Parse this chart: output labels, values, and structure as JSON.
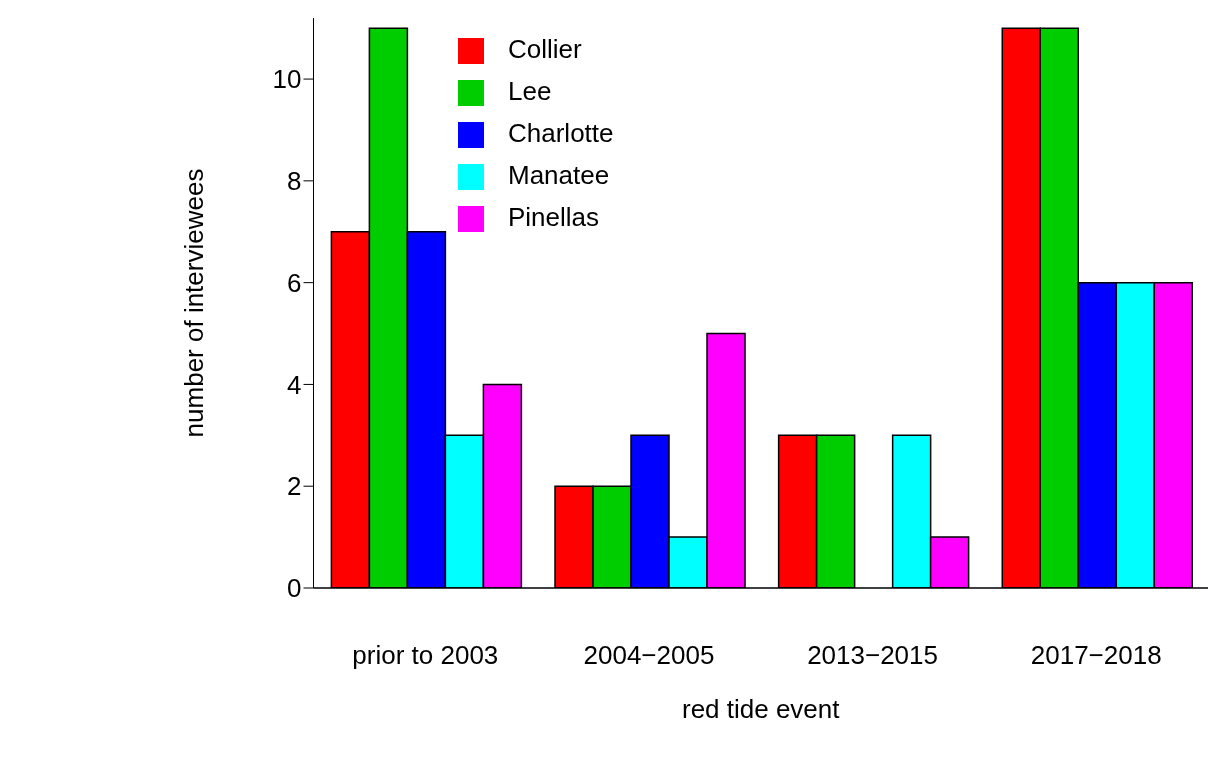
{
  "chart_data": {
    "type": "bar",
    "xlabel": "red tide event",
    "ylabel": "number of interviewees",
    "categories": [
      "prior to 2003",
      "2004−2005",
      "2013−2015",
      "2017−2018"
    ],
    "series": [
      {
        "name": "Collier",
        "color": "#ff0000",
        "values": [
          7,
          2,
          3,
          11
        ]
      },
      {
        "name": "Lee",
        "color": "#00cd00",
        "values": [
          11,
          2,
          3,
          11
        ]
      },
      {
        "name": "Charlotte",
        "color": "#0000ff",
        "values": [
          7,
          3,
          0,
          6
        ]
      },
      {
        "name": "Manatee",
        "color": "#00ffff",
        "values": [
          3,
          1,
          3,
          6
        ]
      },
      {
        "name": "Pinellas",
        "color": "#ff00ff",
        "values": [
          4,
          5,
          1,
          6
        ]
      }
    ],
    "ylim": [
      0,
      11.2
    ],
    "yticks": [
      0,
      2,
      4,
      6,
      8,
      10
    ],
    "grid": false,
    "legend": "top"
  }
}
